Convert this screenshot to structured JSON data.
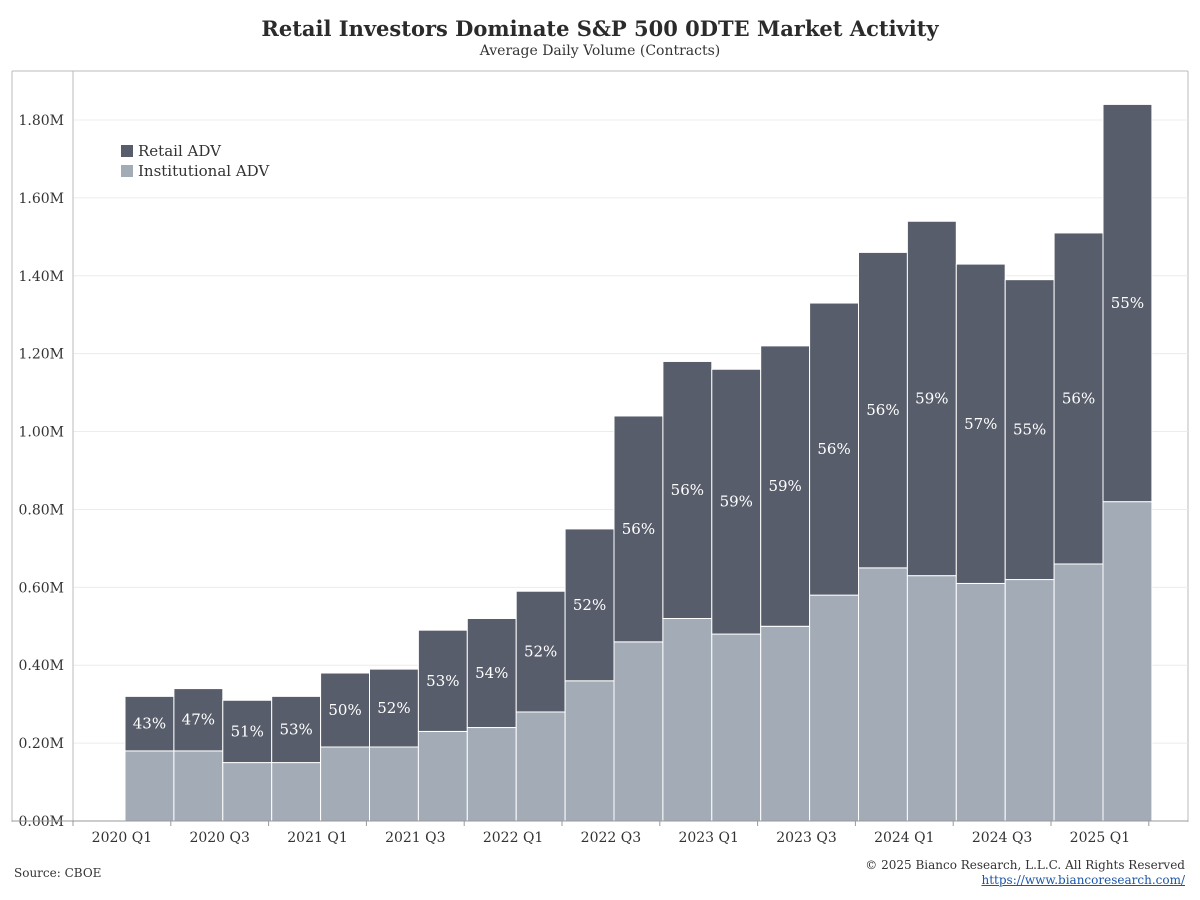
{
  "header": {
    "title": "Retail Investors Dominate S&P 500 0DTE Market Activity",
    "subtitle": "Average Daily Volume (Contracts)"
  },
  "footer": {
    "source": "Source: CBOE",
    "copyright": "© 2025 Bianco Research, L.L.C. All Rights Reserved",
    "url": "https://www.biancoresearch.com/"
  },
  "colors": {
    "retail": "#575d6a",
    "institutional": "#a3abb6",
    "grid": "#ececec",
    "axis": "#bbbbbb"
  },
  "chart_data": {
    "type": "bar",
    "stacked": true,
    "title": "Retail Investors Dominate S&P 500 0DTE Market Activity",
    "subtitle": "Average Daily Volume (Contracts)",
    "xlabel": "",
    "ylabel": "",
    "ylim": [
      0,
      1.9
    ],
    "ytick_values": [
      0,
      0.2,
      0.4,
      0.6,
      0.8,
      1.0,
      1.2,
      1.4,
      1.6,
      1.8
    ],
    "ytick_labels": [
      "0.00M",
      "0.20M",
      "0.40M",
      "0.60M",
      "0.80M",
      "1.00M",
      "1.20M",
      "1.40M",
      "1.60M",
      "1.80M"
    ],
    "xtick_labels": [
      "2020 Q1",
      "2020 Q3",
      "2021 Q1",
      "2021 Q3",
      "2022 Q1",
      "2022 Q3",
      "2023 Q1",
      "2023 Q3",
      "2024 Q1",
      "2024 Q3",
      "2025 Q1"
    ],
    "grid": true,
    "legend": "top-left",
    "categories": [
      "2020 Q1",
      "2020 Q2",
      "2020 Q3",
      "2020 Q4",
      "2021 Q1",
      "2021 Q2",
      "2021 Q3",
      "2021 Q4",
      "2022 Q1",
      "2022 Q2",
      "2022 Q3",
      "2022 Q4",
      "2023 Q1",
      "2023 Q2",
      "2023 Q3",
      "2023 Q4",
      "2024 Q1",
      "2024 Q2",
      "2024 Q3",
      "2024 Q4",
      "2025 Q1"
    ],
    "series": [
      {
        "name": "Retail ADV",
        "values": [
          0.14,
          0.16,
          0.16,
          0.17,
          0.19,
          0.2,
          0.26,
          0.28,
          0.31,
          0.39,
          0.58,
          0.66,
          0.68,
          0.72,
          0.75,
          0.81,
          0.91,
          0.82,
          0.77,
          0.85,
          1.02
        ]
      },
      {
        "name": "Institutional ADV",
        "values": [
          0.18,
          0.18,
          0.15,
          0.15,
          0.19,
          0.19,
          0.23,
          0.24,
          0.28,
          0.36,
          0.46,
          0.52,
          0.48,
          0.5,
          0.58,
          0.65,
          0.63,
          0.61,
          0.62,
          0.66,
          0.82
        ]
      }
    ],
    "annotations": [
      "43%",
      "47%",
      "51%",
      "53%",
      "50%",
      "52%",
      "53%",
      "54%",
      "52%",
      "52%",
      "56%",
      "56%",
      "59%",
      "59%",
      "56%",
      "56%",
      "59%",
      "57%",
      "55%",
      "56%",
      "55%"
    ]
  }
}
